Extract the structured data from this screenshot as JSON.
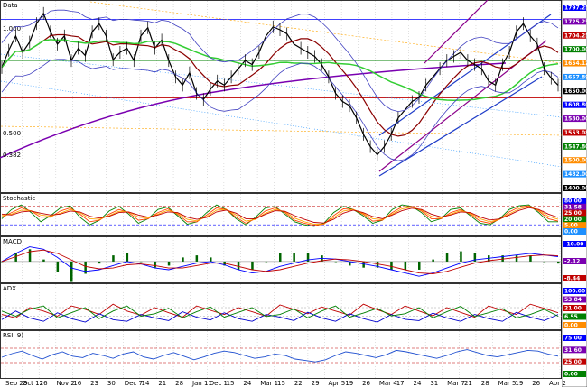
{
  "chart_data": [
    {
      "type": "line",
      "title": "Data",
      "series": [
        {
          "name": "",
          "values": [
            1683,
            1725,
            1760,
            1720,
            1745,
            1790,
            1815,
            1770,
            1740,
            1760,
            1700,
            1730,
            1712,
            1770,
            1790,
            1760,
            1702,
            1720,
            1730,
            1700,
            1760,
            1780,
            1730,
            1750,
            1700,
            1660,
            1640,
            1670,
            1620,
            1605,
            1630,
            1650,
            1640,
            1660,
            1680,
            1700,
            1690,
            1720,
            1760,
            1782,
            1775,
            1765,
            1740,
            1730,
            1720,
            1710,
            1690,
            1660,
            1620,
            1600,
            1590,
            1560,
            1520,
            1490,
            1470,
            1490,
            1520,
            1560,
            1580,
            1600,
            1610,
            1640,
            1660,
            1680,
            1700,
            1710,
            1720,
            1700,
            1690,
            1680,
            1650,
            1640,
            1690,
            1720,
            1770,
            1790,
            1760,
            1740,
            1680,
            1657,
            1640
          ]
        }
      ],
      "x_ticks": [
        "Sep 28",
        "Oct 12",
        "26",
        "Nov 2",
        "16",
        "23",
        "30",
        "Dec 7",
        "14",
        "21",
        "28",
        "Jan 11",
        "Dec 1",
        "15",
        "24",
        "Mar 1",
        "15",
        "22",
        "29",
        "Apr 5",
        "19",
        "26",
        "Mar 4",
        "17",
        "24",
        "31",
        "Mar 7",
        "21",
        "28",
        "Mar 5",
        "19",
        "26",
        "Apr 2"
      ],
      "y_ticks": [
        "1800.00",
        "1700.00",
        "1600.00",
        "1400.00"
      ],
      "left_labels": [
        "1.000",
        "0.500",
        "0.382"
      ],
      "right_labels": [
        "1797.25",
        "1725.25",
        "1704.25",
        "1700.00",
        "1654.12",
        "1657.89",
        "1650.00",
        "1608.80",
        "1580.00",
        "1553.08",
        "1547.80",
        "1500.00",
        "1482.00",
        "1400.00"
      ]
    },
    {
      "type": "line",
      "title": "Stochastic",
      "ylim": [
        0,
        100
      ],
      "series": [
        {
          "name": "",
          "values": [
            40,
            70,
            85,
            60,
            30,
            50,
            75,
            82,
            45,
            20,
            35,
            65,
            80,
            55,
            25,
            40,
            70,
            78,
            50,
            22,
            30,
            60,
            85,
            70,
            40,
            20,
            45,
            75,
            80,
            55,
            30,
            20,
            15,
            25,
            60,
            80,
            70,
            50,
            25,
            35,
            70,
            85,
            80,
            60,
            30,
            40,
            70,
            75,
            50,
            25,
            20,
            40,
            70,
            82,
            85,
            60,
            30,
            30
          ]
        },
        {
          "name": "",
          "values": [
            45,
            60,
            75,
            65,
            45,
            45,
            65,
            75,
            55,
            30,
            35,
            55,
            70,
            60,
            35,
            40,
            60,
            72,
            55,
            30,
            30,
            52,
            75,
            70,
            45,
            25,
            40,
            65,
            75,
            60,
            35,
            25,
            18,
            22,
            50,
            72,
            70,
            55,
            32,
            35,
            60,
            78,
            80,
            65,
            40,
            40,
            60,
            70,
            55,
            32,
            25,
            38,
            62,
            78,
            82,
            65,
            40,
            32
          ]
        },
        {
          "name": "",
          "values": [
            50,
            55,
            68,
            66,
            52,
            48,
            58,
            70,
            60,
            40,
            38,
            50,
            64,
            62,
            45,
            42,
            55,
            67,
            58,
            38,
            33,
            47,
            68,
            70,
            52,
            32,
            38,
            58,
            70,
            63,
            42,
            30,
            22,
            23,
            43,
            65,
            70,
            58,
            40,
            37,
            55,
            72,
            78,
            68,
            48,
            42,
            55,
            66,
            58,
            40,
            30,
            38,
            56,
            72,
            80,
            68,
            48,
            38
          ]
        },
        {
          "name": "",
          "values": [
            55,
            52,
            62,
            65,
            58,
            52,
            55,
            65,
            62,
            48,
            42,
            48,
            60,
            62,
            52,
            45,
            52,
            62,
            60,
            45,
            38,
            44,
            62,
            68,
            58,
            40,
            40,
            54,
            66,
            64,
            50,
            38,
            28,
            26,
            38,
            58,
            68,
            60,
            47,
            40,
            52,
            66,
            74,
            70,
            55,
            46,
            52,
            62,
            60,
            46,
            36,
            39,
            52,
            67,
            76,
            70,
            55,
            44
          ]
        }
      ],
      "right_labels": [
        "80.00",
        "31.58",
        "25.00",
        "20.00",
        "5.00",
        "0.00"
      ]
    },
    {
      "type": "line",
      "title": "MACD",
      "series": [
        {
          "name": "",
          "values": [
            0,
            10,
            18,
            15,
            5,
            -8,
            -12,
            -10,
            -5,
            0,
            -3,
            -8,
            -10,
            -6,
            -2,
            0,
            -4,
            -10,
            -14,
            -12,
            -6,
            -2,
            2,
            4,
            3,
            0,
            -3,
            -6,
            -10,
            -14,
            -18,
            -14,
            -8,
            -2,
            2,
            4,
            6,
            8,
            10,
            8,
            6
          ]
        },
        {
          "name": "",
          "values": [
            0,
            6,
            12,
            14,
            10,
            2,
            -6,
            -9,
            -8,
            -4,
            -3,
            -5,
            -8,
            -8,
            -5,
            -2,
            -2,
            -6,
            -10,
            -12,
            -10,
            -6,
            -2,
            1,
            3,
            2,
            0,
            -3,
            -6,
            -10,
            -14,
            -15,
            -12,
            -7,
            -2,
            1,
            3,
            5,
            7,
            8,
            7
          ]
        }
      ],
      "right_labels": [
        "-10.00",
        "-2.12",
        "-8.44"
      ]
    },
    {
      "type": "line",
      "title": "ADX",
      "series": [
        {
          "name": "",
          "values": [
            30,
            20,
            50,
            40,
            25,
            55,
            45,
            30,
            60,
            40,
            28,
            50,
            35,
            22,
            55,
            42,
            30,
            50,
            38,
            25,
            58,
            45,
            32,
            52,
            40,
            28,
            60,
            44,
            30,
            55,
            40,
            26,
            50,
            36,
            22,
            55,
            42,
            30,
            60,
            48,
            35
          ]
        },
        {
          "name": "",
          "values": [
            15,
            40,
            20,
            10,
            35,
            18,
            8,
            32,
            15,
            10,
            30,
            20,
            12,
            38,
            22,
            14,
            35,
            18,
            10,
            30,
            22,
            12,
            36,
            20,
            10,
            32,
            18,
            8,
            30,
            16,
            12,
            34,
            20,
            10,
            30,
            18,
            10,
            36,
            22,
            12,
            30
          ]
        },
        {
          "name": "",
          "values": [
            40,
            25,
            45,
            55,
            20,
            35,
            50,
            18,
            40,
            55,
            25,
            32,
            48,
            20,
            38,
            52,
            22,
            36,
            50,
            24,
            30,
            46,
            20,
            40,
            55,
            22,
            34,
            48,
            26,
            32,
            50,
            20,
            38,
            54,
            24,
            35,
            47,
            20,
            30,
            45,
            25
          ]
        }
      ],
      "right_labels": [
        "100.00",
        "53.84",
        "21.00",
        "6.55",
        "0.00"
      ]
    },
    {
      "type": "line",
      "title": "RSI, 9)",
      "ylim": [
        0,
        100
      ],
      "series": [
        {
          "name": "",
          "values": [
            45,
            55,
            62,
            50,
            40,
            52,
            60,
            48,
            44,
            56,
            50,
            42,
            54,
            60,
            46,
            40,
            50,
            58,
            48,
            38,
            46,
            56,
            62,
            58,
            50,
            42,
            46,
            54,
            50,
            40,
            36,
            32,
            38,
            50,
            60,
            56,
            50,
            44,
            52,
            64,
            60,
            54,
            48,
            42,
            50,
            60,
            66,
            58,
            50,
            46,
            52,
            58,
            64,
            62,
            54,
            48
          ]
        }
      ],
      "right_labels": [
        "75.00",
        "31.60",
        "25.00",
        "0.00"
      ]
    }
  ]
}
